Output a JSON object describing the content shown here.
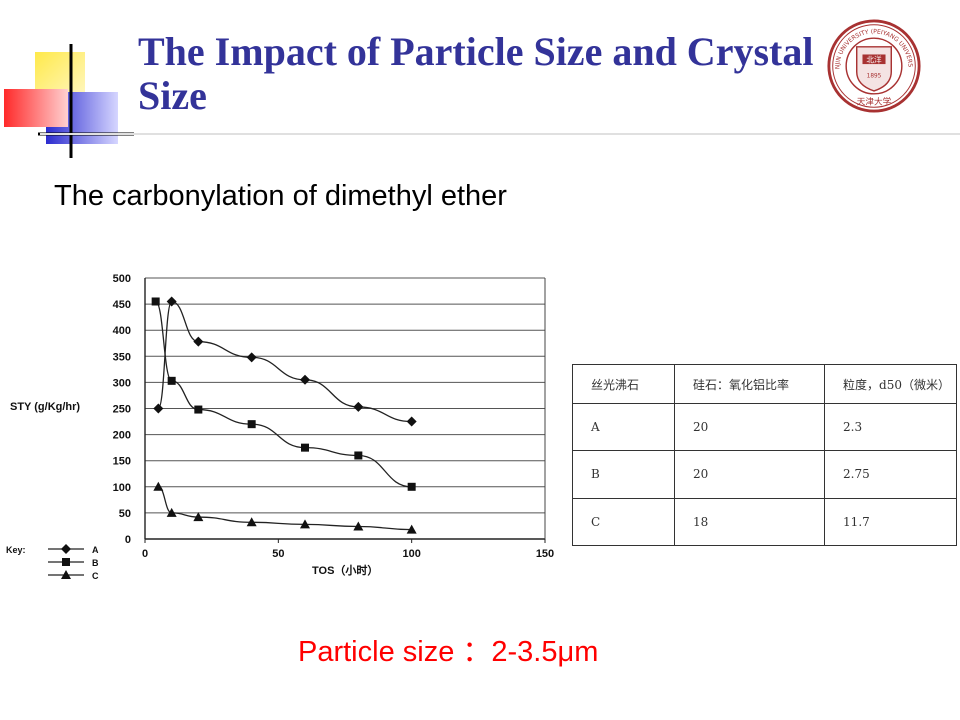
{
  "slide": {
    "title": "The Impact of Particle Size and Crystal Size",
    "subtitle": "The carbonylation of dimethyl ether",
    "note": "Particle size  ：2-3.5μm"
  },
  "logo": {
    "name": "tianjin-university-seal",
    "outer_text": "TIANJIN UNIVERSITY (PEIYANG UNIVERSITY)",
    "inner_text": "北洋",
    "year": "1895",
    "script": "天津大学",
    "color": "#a83232"
  },
  "table": {
    "headers": [
      "丝光沸石",
      "硅石：氧化铝比率",
      "粒度，d50（微米）"
    ],
    "rows": [
      [
        "A",
        "20",
        "2.3"
      ],
      [
        "B",
        "20",
        "2.75"
      ],
      [
        "C",
        "18",
        "11.7"
      ]
    ]
  },
  "chart_data": {
    "type": "line",
    "title": "",
    "xlabel": "TOS（小时）",
    "ylabel": "STY (g/Kg/hr)",
    "xlim": [
      0,
      150
    ],
    "ylim": [
      0,
      500
    ],
    "x_ticks": [
      "0",
      "50",
      "100",
      "150"
    ],
    "y_ticks": [
      "0",
      "50",
      "100",
      "150",
      "200",
      "250",
      "300",
      "350",
      "400",
      "450",
      "500"
    ],
    "grid": "horizontal",
    "legend": {
      "position": "bottom-left",
      "key_label": "Key:"
    },
    "series": [
      {
        "name": "A",
        "marker": "diamond",
        "x": [
          5,
          10,
          20,
          40,
          60,
          80,
          100
        ],
        "y": [
          250,
          455,
          378,
          348,
          305,
          253,
          225
        ]
      },
      {
        "name": "B",
        "marker": "square",
        "x": [
          4,
          10,
          20,
          40,
          60,
          80,
          100
        ],
        "y": [
          455,
          303,
          248,
          220,
          175,
          160,
          100
        ]
      },
      {
        "name": "C",
        "marker": "triangle",
        "x": [
          5,
          10,
          20,
          40,
          60,
          80,
          100
        ],
        "y": [
          100,
          50,
          42,
          32,
          28,
          24,
          18
        ]
      }
    ]
  }
}
